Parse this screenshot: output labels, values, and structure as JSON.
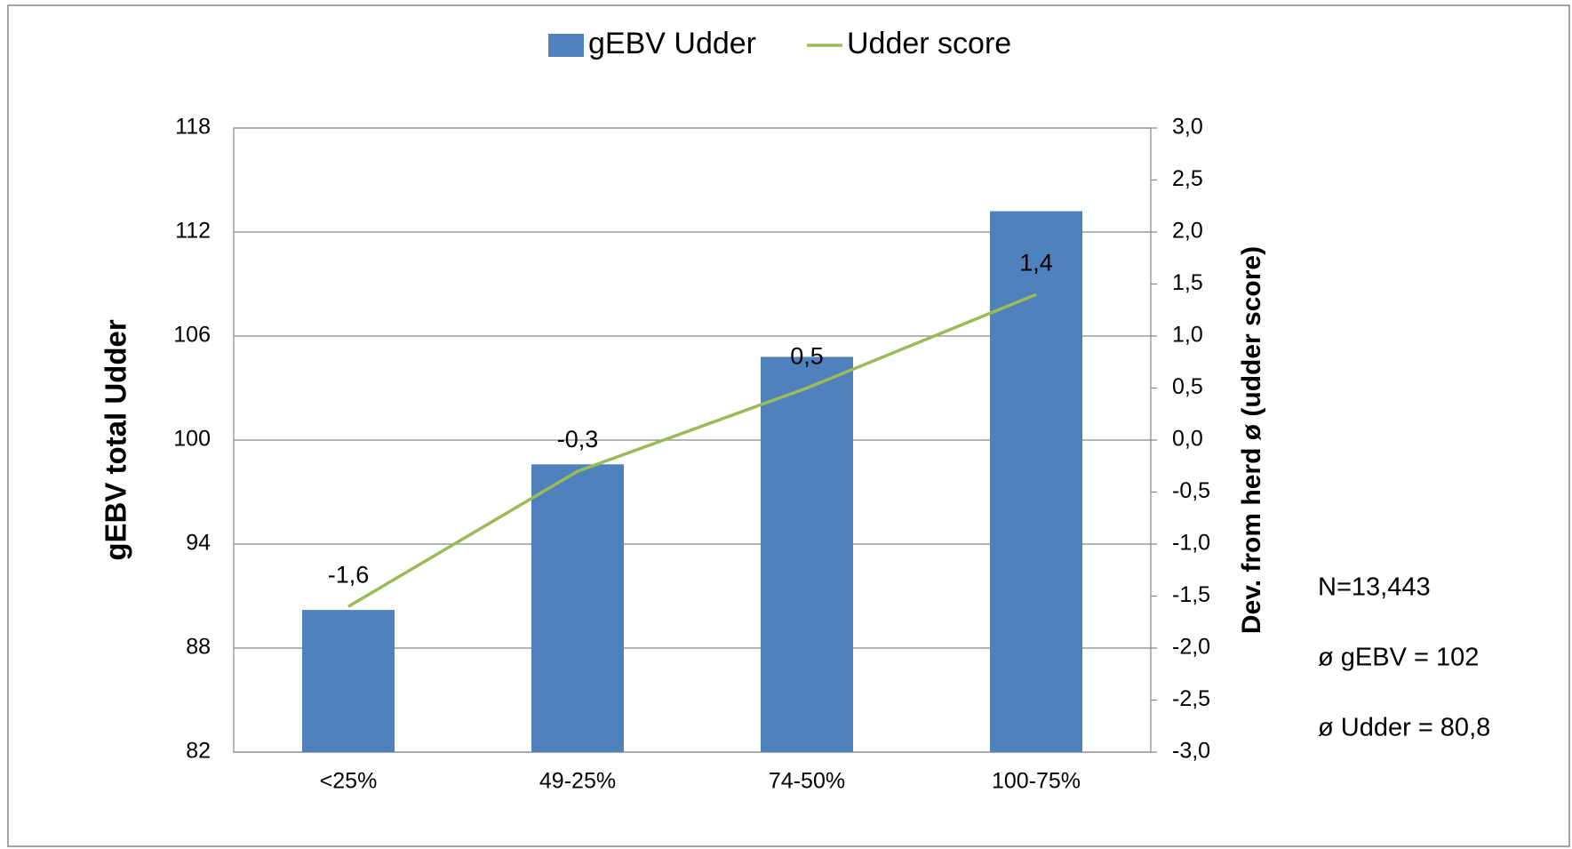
{
  "chart_data": {
    "type": "bar-line",
    "categories": [
      "<25%",
      "49-25%",
      "74-50%",
      "100-75%"
    ],
    "series": [
      {
        "name": "gEBV Udder",
        "type": "bar",
        "color": "#4f81bd",
        "values": [
          90.2,
          98.6,
          104.8,
          113.2
        ]
      },
      {
        "name": "Udder score",
        "type": "line",
        "color": "#9bbb59",
        "axis": "y2",
        "values": [
          -1.6,
          -0.3,
          0.5,
          1.4
        ],
        "value_labels": [
          "-1,6",
          "-0,3",
          "0,5",
          "1,4"
        ]
      }
    ],
    "ylabel": "gEBV total Udder",
    "y2label": "Dev. from herd ø (udder score)",
    "ylim": [
      82,
      118
    ],
    "yticks": [
      82,
      88,
      94,
      100,
      106,
      112,
      118
    ],
    "y2lim": [
      -3,
      3
    ],
    "y2ticks": [
      {
        "value": -3,
        "label": "-3,0"
      },
      {
        "value": -2.5,
        "label": "-2,5"
      },
      {
        "value": -2,
        "label": "-2,0"
      },
      {
        "value": -1.5,
        "label": "-1,5"
      },
      {
        "value": -1,
        "label": "-1,0"
      },
      {
        "value": -0.5,
        "label": "-0,5"
      },
      {
        "value": 0,
        "label": "0,0"
      },
      {
        "value": 0.5,
        "label": "0,5"
      },
      {
        "value": 1,
        "label": "1,0"
      },
      {
        "value": 1.5,
        "label": "1,5"
      },
      {
        "value": 2,
        "label": "2,0"
      },
      {
        "value": 2.5,
        "label": "2,5"
      },
      {
        "value": 3,
        "label": "3,0"
      }
    ],
    "grid": true,
    "legend": "top",
    "annotations": [
      "N=13,443",
      "ø gEBV = 102",
      "ø Udder = 80,8"
    ]
  }
}
